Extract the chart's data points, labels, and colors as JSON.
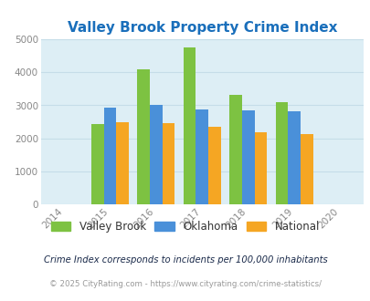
{
  "title": "Valley Brook Property Crime Index",
  "title_color": "#1a6fbb",
  "years": [
    2015,
    2016,
    2017,
    2018,
    2019
  ],
  "valley_brook": [
    2430,
    4080,
    4760,
    3330,
    3090
  ],
  "oklahoma": [
    2920,
    3010,
    2870,
    2860,
    2830
  ],
  "national": [
    2490,
    2460,
    2360,
    2200,
    2130
  ],
  "color_vb": "#7dc242",
  "color_ok": "#4a90d9",
  "color_nat": "#f5a623",
  "xlim": [
    2013.5,
    2020.5
  ],
  "ylim": [
    0,
    5000
  ],
  "yticks": [
    0,
    1000,
    2000,
    3000,
    4000,
    5000
  ],
  "xticks": [
    2014,
    2015,
    2016,
    2017,
    2018,
    2019,
    2020
  ],
  "bg_color": "#ddeef5",
  "grid_color": "#c5dde8",
  "legend_labels": [
    "Valley Brook",
    "Oklahoma",
    "National"
  ],
  "footnote1": "Crime Index corresponds to incidents per 100,000 inhabitants",
  "footnote2": "© 2025 CityRating.com - https://www.cityrating.com/crime-statistics/",
  "bar_width": 0.27
}
